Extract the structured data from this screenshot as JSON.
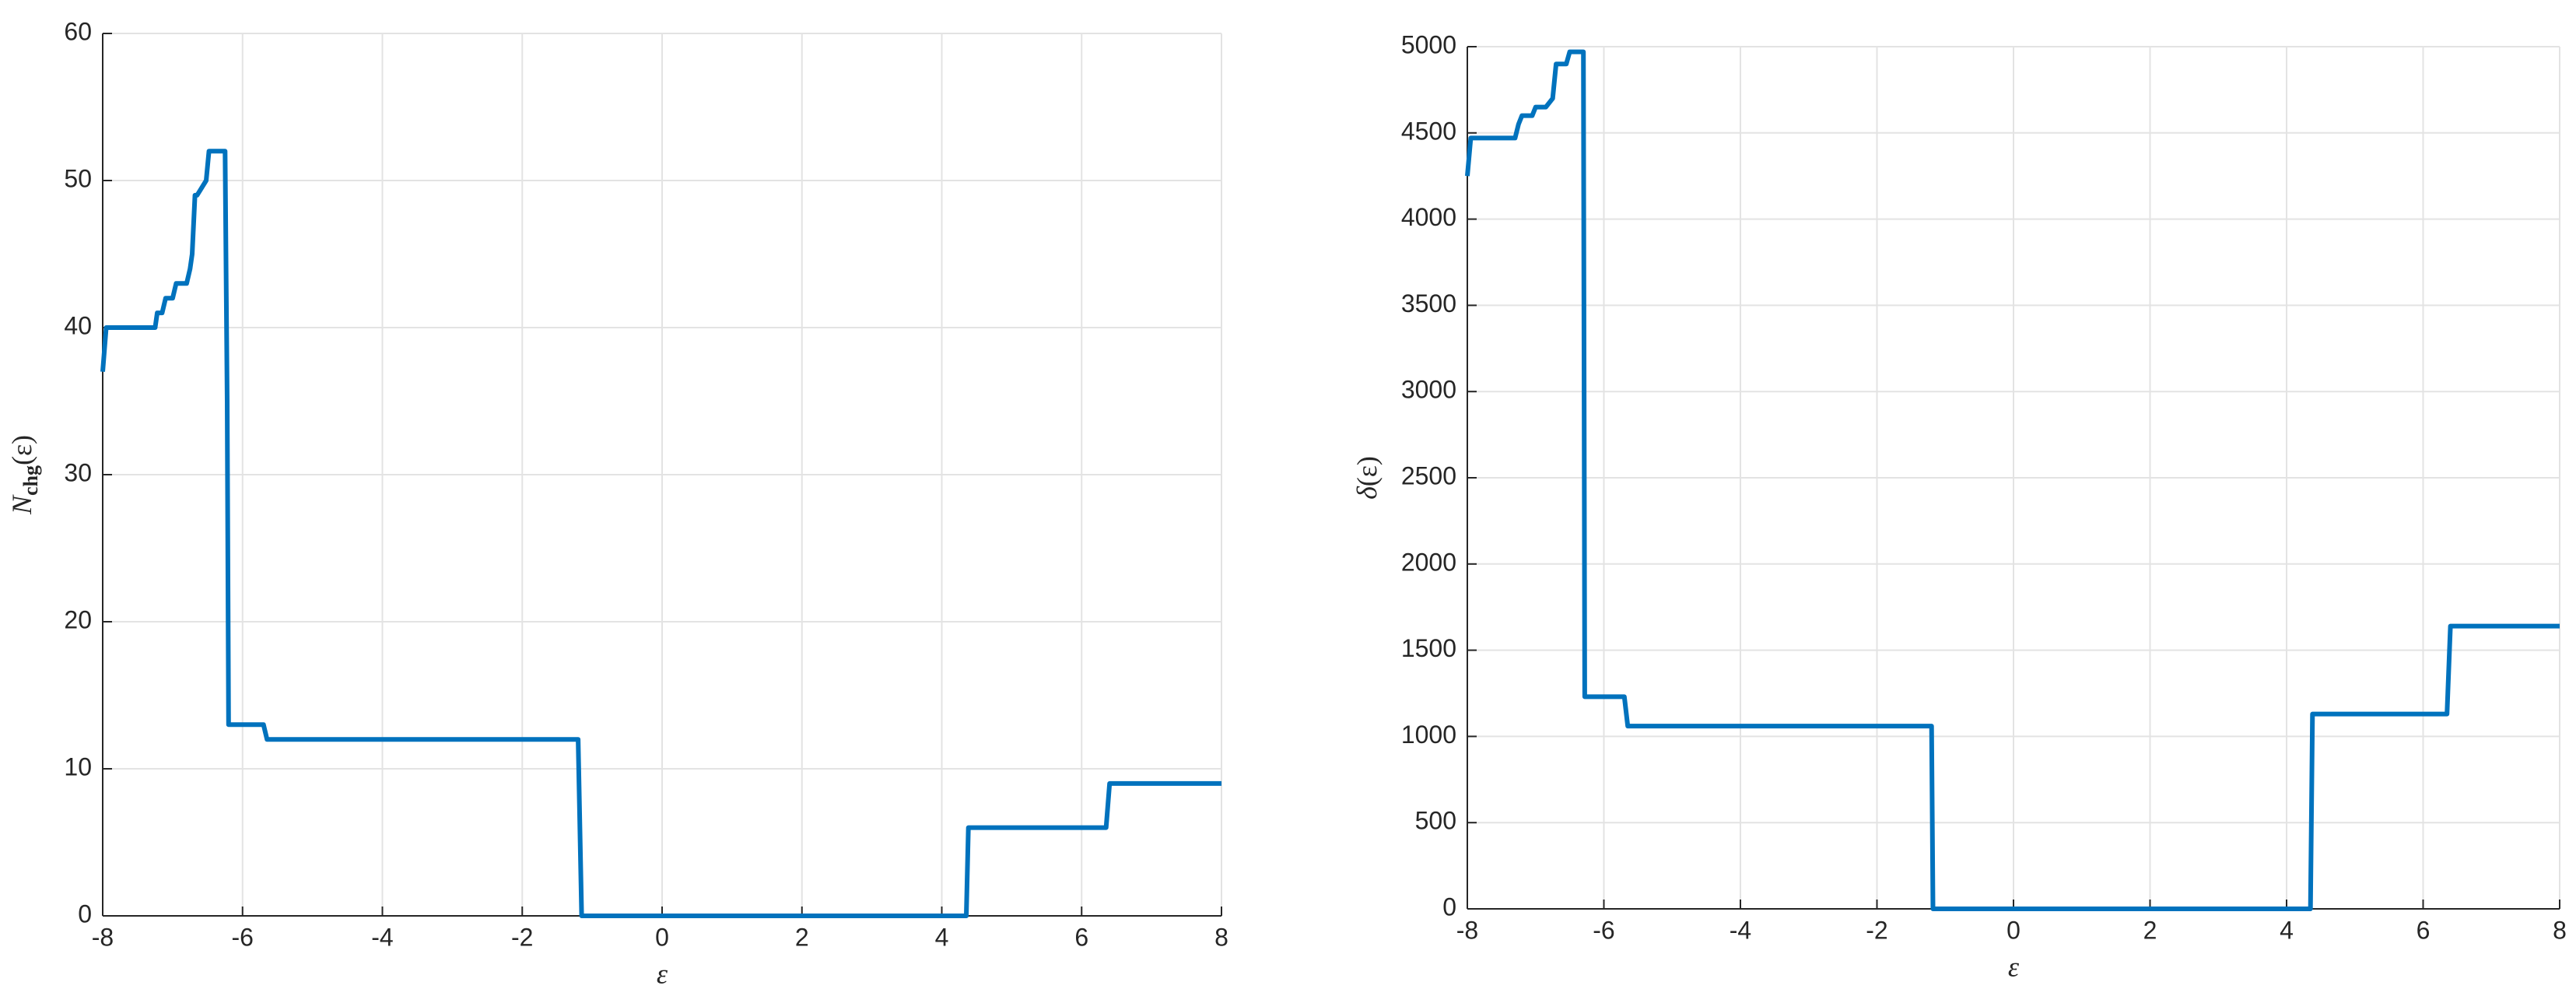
{
  "chart_data": [
    {
      "type": "line",
      "xlabel": "ε",
      "ylabel": {
        "main": "N",
        "sub": "chg",
        "rest": "(ε)"
      },
      "x": [
        -8,
        -7.95,
        -7.25,
        -7.22,
        -7.15,
        -7.1,
        -7.0,
        -6.95,
        -6.8,
        -6.75,
        -6.72,
        -6.68,
        -6.65,
        -6.52,
        -6.48,
        -6.45,
        -6.25,
        -6.22,
        -6.2,
        -5.7,
        -5.65,
        -1.2,
        -1.15,
        4.35,
        4.38,
        6.35,
        6.4,
        8
      ],
      "series": [
        {
          "color": "#0072bd",
          "values": [
            37,
            40,
            40,
            41,
            41,
            42,
            42,
            43,
            43,
            44,
            45,
            49,
            49,
            50,
            52,
            52,
            52,
            35,
            13,
            13,
            12,
            12,
            0,
            0,
            6,
            6,
            9,
            9
          ]
        }
      ],
      "xlim": [
        -8,
        8
      ],
      "xticks": [
        -8,
        -6,
        -4,
        -2,
        0,
        2,
        4,
        6,
        8
      ],
      "ylim": [
        0,
        60
      ],
      "yticks": [
        0,
        10,
        20,
        30,
        40,
        50,
        60
      ],
      "grid": true
    },
    {
      "type": "line",
      "xlabel": "ε",
      "ylabel": {
        "main": "δ",
        "sub": "",
        "rest": "(ε)"
      },
      "x": [
        -8,
        -7.95,
        -7.3,
        -7.25,
        -7.2,
        -7.05,
        -7.0,
        -6.85,
        -6.75,
        -6.7,
        -6.55,
        -6.5,
        -6.3,
        -6.28,
        -5.7,
        -5.65,
        -1.2,
        -1.18,
        4.35,
        4.38,
        6.35,
        6.4,
        8
      ],
      "series": [
        {
          "color": "#0072bd",
          "values": [
            4250,
            4470,
            4470,
            4550,
            4600,
            4600,
            4650,
            4650,
            4700,
            4900,
            4900,
            4970,
            4970,
            1230,
            1230,
            1060,
            1060,
            0,
            0,
            1130,
            1130,
            1640,
            1640
          ]
        }
      ],
      "xlim": [
        -8,
        8
      ],
      "xticks": [
        -8,
        -6,
        -4,
        -2,
        0,
        2,
        4,
        6,
        8
      ],
      "ylim": [
        0,
        5000
      ],
      "yticks": [
        0,
        500,
        1000,
        1500,
        2000,
        2500,
        3000,
        3500,
        4000,
        4500,
        5000
      ],
      "grid": true
    }
  ]
}
